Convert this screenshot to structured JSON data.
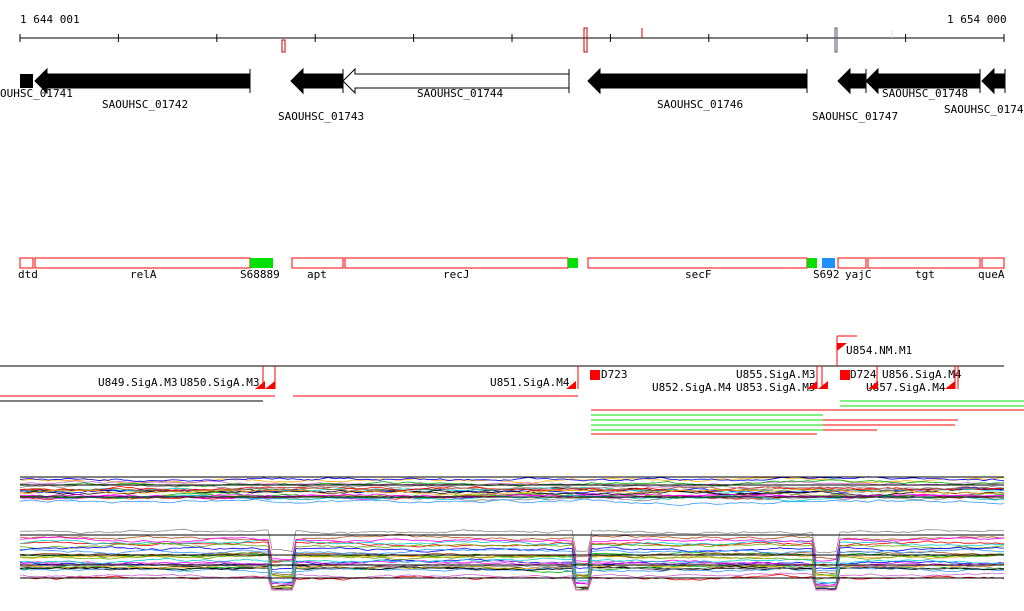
{
  "ruler": {
    "start": "1 644 001",
    "end": "1 654 000"
  },
  "genes": [
    {
      "label": "OUHSC_01741",
      "filled": true
    },
    {
      "label": "SAOUHSC_01742",
      "filled": true
    },
    {
      "label": "SAOUHSC_01743",
      "filled": true
    },
    {
      "label": "SAOUHSC_01744",
      "filled": false
    },
    {
      "label": "SAOUHSC_01746",
      "filled": true
    },
    {
      "label": "SAOUHSC_01747",
      "filled": true
    },
    {
      "label": "SAOUHSC_01748",
      "filled": true
    },
    {
      "label": "SAOUHSC_0174",
      "filled": true
    }
  ],
  "annotations": [
    "dtd",
    "relA",
    "S68889",
    "apt",
    "recJ",
    "secF",
    "S692",
    "yajC",
    "tgt",
    "queA"
  ],
  "features": [
    "U849.SigA.M3",
    "U850.SigA.M3",
    "U851.SigA.M4",
    "D723",
    "U852.SigA.M4",
    "U853.SigA.M5",
    "U855.SigA.M3",
    "D724",
    "U854.NM.M1",
    "U856.SigA.M4",
    "U857.SigA.M4"
  ],
  "colors": {
    "feature": "#ff0000",
    "green": "#00e000",
    "blue": "#1e90ff",
    "gene": "#000000"
  }
}
